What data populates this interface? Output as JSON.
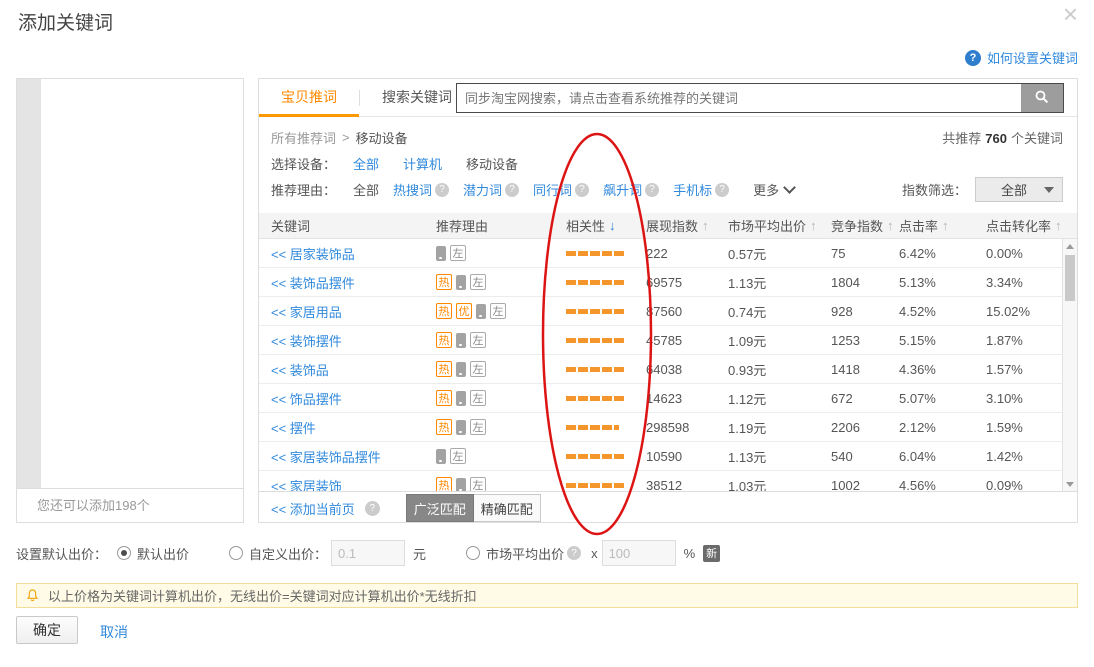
{
  "dialog": {
    "title": "添加关键词",
    "close_icon": "×"
  },
  "help_link": {
    "icon": "?",
    "label": "如何设置关键词"
  },
  "left_panel": {
    "footer_note": "您还可以添加198个"
  },
  "tabs": [
    {
      "label": "宝贝推词",
      "active": true
    },
    {
      "label": "搜索关键词",
      "active": false
    }
  ],
  "search": {
    "placeholder": "同步淘宝网搜索，请点击查看系统推荐的关键词"
  },
  "summary": {
    "prefix": "共推荐",
    "count": "760",
    "suffix": "个关键词"
  },
  "breadcrumb": {
    "root": "所有推荐词",
    "separator": ">",
    "current": "移动设备"
  },
  "device_filter": {
    "label": "选择设备：",
    "options": [
      {
        "label": "全部",
        "selected": false
      },
      {
        "label": "计算机",
        "selected": false
      },
      {
        "label": "移动设备",
        "selected": true
      }
    ]
  },
  "reason_filter": {
    "label": "推荐理由：",
    "options": [
      {
        "label": "全部",
        "selected": true,
        "help": false
      },
      {
        "label": "热搜词",
        "selected": false,
        "help": true
      },
      {
        "label": "潜力词",
        "selected": false,
        "help": true
      },
      {
        "label": "同行词",
        "selected": false,
        "help": true
      },
      {
        "label": "飙升词",
        "selected": false,
        "help": true
      },
      {
        "label": "手机标",
        "selected": false,
        "help": true
      }
    ],
    "more_label": "更多"
  },
  "index_filter": {
    "label": "指数筛选：",
    "value": "全部"
  },
  "table": {
    "headers": [
      {
        "label": "关键词",
        "sort": null
      },
      {
        "label": "推荐理由",
        "sort": null
      },
      {
        "label": "相关性",
        "sort": "down"
      },
      {
        "label": "展现指数",
        "sort": "up"
      },
      {
        "label": "市场平均出价",
        "sort": "up"
      },
      {
        "label": "竞争指数",
        "sort": "up"
      },
      {
        "label": "点击率",
        "sort": "up"
      },
      {
        "label": "点击转化率",
        "sort": "up"
      }
    ],
    "badge_labels": {
      "hot": "热",
      "premium": "优",
      "left": "左"
    },
    "rows": [
      {
        "keyword": "<< 居家装饰品",
        "badges": [
          "phone",
          "left"
        ],
        "relevance": 5,
        "impression_index": "222",
        "market_avg_bid": "0.57元",
        "competition_index": "75",
        "ctr": "6.42%",
        "cvr": "0.00%"
      },
      {
        "keyword": "<< 装饰品摆件",
        "badges": [
          "hot",
          "phone",
          "left"
        ],
        "relevance": 5,
        "impression_index": "69575",
        "market_avg_bid": "1.13元",
        "competition_index": "1804",
        "ctr": "5.13%",
        "cvr": "3.34%"
      },
      {
        "keyword": "<< 家居用品",
        "badges": [
          "hot",
          "premium",
          "phone",
          "left"
        ],
        "relevance": 5,
        "impression_index": "87560",
        "market_avg_bid": "0.74元",
        "competition_index": "928",
        "ctr": "4.52%",
        "cvr": "15.02%"
      },
      {
        "keyword": "<< 装饰摆件",
        "badges": [
          "hot",
          "phone",
          "left"
        ],
        "relevance": 5,
        "impression_index": "45785",
        "market_avg_bid": "1.09元",
        "competition_index": "1253",
        "ctr": "5.15%",
        "cvr": "1.87%"
      },
      {
        "keyword": "<< 装饰品",
        "badges": [
          "hot",
          "phone",
          "left"
        ],
        "relevance": 5,
        "impression_index": "64038",
        "market_avg_bid": "0.93元",
        "competition_index": "1418",
        "ctr": "4.36%",
        "cvr": "1.57%"
      },
      {
        "keyword": "<< 饰品摆件",
        "badges": [
          "hot",
          "phone",
          "left"
        ],
        "relevance": 5,
        "impression_index": "14623",
        "market_avg_bid": "1.12元",
        "competition_index": "672",
        "ctr": "5.07%",
        "cvr": "3.10%"
      },
      {
        "keyword": "<< 摆件",
        "badges": [
          "hot",
          "phone",
          "left"
        ],
        "relevance": 4.5,
        "impression_index": "298598",
        "market_avg_bid": "1.19元",
        "competition_index": "2206",
        "ctr": "2.12%",
        "cvr": "1.59%"
      },
      {
        "keyword": "<< 家居装饰品摆件",
        "badges": [
          "phone",
          "left"
        ],
        "relevance": 5,
        "impression_index": "10590",
        "market_avg_bid": "1.13元",
        "competition_index": "540",
        "ctr": "6.04%",
        "cvr": "1.42%"
      },
      {
        "keyword": "<< 家居装饰",
        "badges": [
          "hot",
          "phone",
          "left"
        ],
        "relevance": 5,
        "impression_index": "38512",
        "market_avg_bid": "1.03元",
        "competition_index": "1002",
        "ctr": "4.56%",
        "cvr": "0.09%"
      }
    ]
  },
  "page_actions": {
    "add_current_page": "<< 添加当前页",
    "broad_match": "广泛匹配",
    "exact_match": "精确匹配"
  },
  "bid_settings": {
    "label": "设置默认出价：",
    "default_option": "默认出价",
    "custom_option": "自定义出价：",
    "custom_value": "0.1",
    "yuan_unit": "元",
    "market_option": "市场平均出价",
    "multiply_sign": "x",
    "percent_value": "100",
    "percent_unit": "%",
    "new_badge": "新"
  },
  "warning": {
    "text": "以上价格为关键词计算机出价，无线出价=关键词对应计算机出价*无线折扣"
  },
  "footer": {
    "confirm": "确定",
    "cancel": "取消"
  },
  "colors": {
    "accent_orange": "#ff8800",
    "link_blue": "#3089dc",
    "annotation_red": "#dd1414",
    "warning_bg": "#fffbe6"
  }
}
